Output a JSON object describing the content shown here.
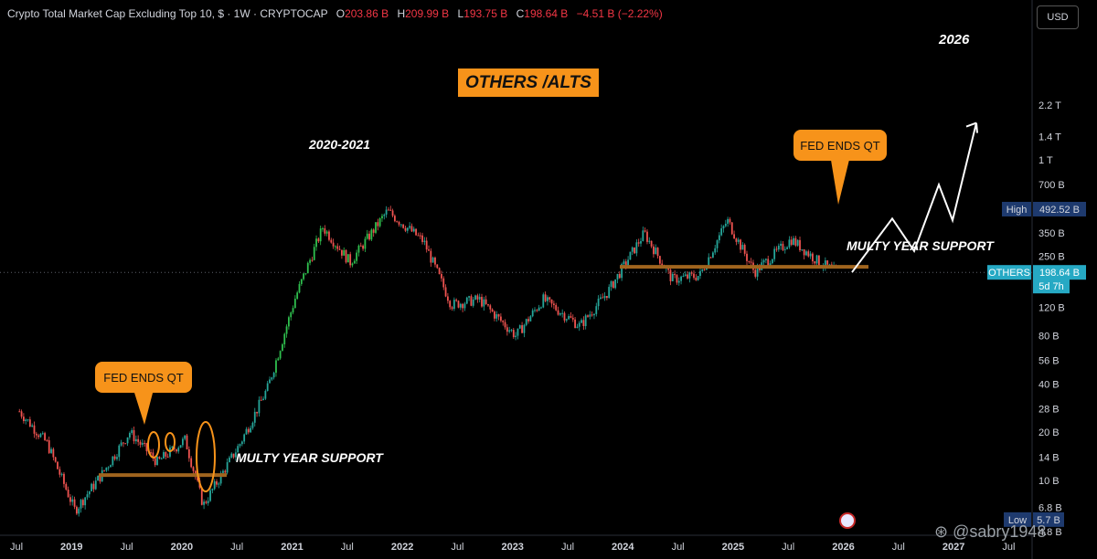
{
  "header": {
    "title": "Crypto Total Market Cap Excluding Top 10, $ · 1W · CRYPTOCAP",
    "o_label": "O",
    "o_value": "203.86 B",
    "h_label": "H",
    "h_value": "209.99 B",
    "l_label": "L",
    "l_value": "193.75 B",
    "c_label": "C",
    "c_value": "198.64 B",
    "change": "−4.51 B (−2.22%)"
  },
  "currency_button": "USD",
  "annotations": {
    "title_box": "OTHERS /ALTS",
    "cycle_label": "2020-2021",
    "target_label": "2026",
    "fed_left": "FED ENDS QT",
    "fed_right": "FED ENDS QT",
    "support_left": "MULTY YEAR SUPPORT",
    "support_right": "MULTY YEAR SUPPORT"
  },
  "watermark": "@sabry1948",
  "colors": {
    "up": "#26a69a",
    "up_bright": "#2fbf4e",
    "down": "#ef5350",
    "callout": "#f7931a",
    "support": "#a0641e",
    "last_price_tag": "#26a9c4",
    "extreme_tag": "#1e3a6e"
  },
  "chart_data": {
    "type": "candlestick",
    "interval": "1W",
    "y_scale": "log",
    "y_ticks": [
      "2.2 T",
      "1.4 T",
      "1 T",
      "700 B",
      "350 B",
      "250 B",
      "120 B",
      "80 B",
      "56 B",
      "40 B",
      "28 B",
      "20 B",
      "14 B",
      "10 B",
      "6.8 B",
      "4.8 B"
    ],
    "x_ticks": [
      "Jul",
      "2019",
      "Jul",
      "2020",
      "Jul",
      "2021",
      "Jul",
      "2022",
      "Jul",
      "2023",
      "Jul",
      "2024",
      "Jul",
      "2025",
      "Jul",
      "2026",
      "Jul",
      "2027",
      "Jul"
    ],
    "labels": {
      "high": {
        "label": "High",
        "value": "492.52 B"
      },
      "low": {
        "label": "Low",
        "value": "5.7 B"
      },
      "last": {
        "label": "OTHERS",
        "value": "198.64 B",
        "countdown": "5d 7h"
      }
    },
    "series": [
      {
        "name": "OTHERS",
        "x": [
          "2018-07",
          "2018-10",
          "2019-01",
          "2019-04",
          "2019-07",
          "2019-10",
          "2020-01",
          "2020-03",
          "2020-07",
          "2020-10",
          "2021-01",
          "2021-04",
          "2021-07",
          "2021-11",
          "2022-03",
          "2022-06",
          "2022-09",
          "2023-01",
          "2023-04",
          "2023-08",
          "2023-11",
          "2024-03",
          "2024-06",
          "2024-09",
          "2024-12",
          "2025-03",
          "2025-07",
          "2025-10",
          "2025-12"
        ],
        "values": [
          27,
          17,
          6.5,
          11,
          20,
          13,
          18,
          7,
          17,
          38,
          140,
          380,
          230,
          480,
          310,
          125,
          135,
          80,
          135,
          92,
          150,
          350,
          180,
          190,
          420,
          200,
          320,
          230,
          199
        ]
      }
    ],
    "support_levels_B": [
      10.8,
      215
    ],
    "projection_path_B": [
      199,
      430,
      270,
      700,
      420,
      1700
    ]
  }
}
